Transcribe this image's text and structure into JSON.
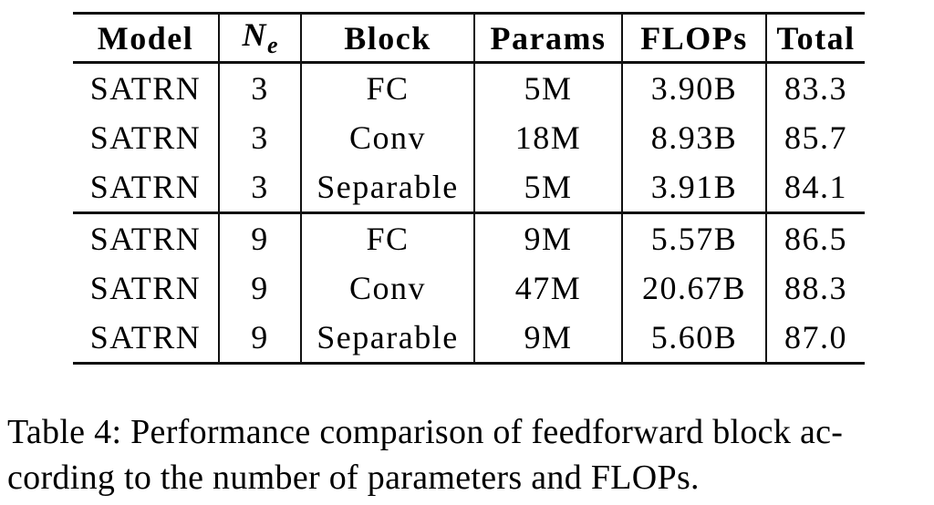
{
  "colors": {
    "text": "#000000",
    "rule": "#111111",
    "background": "#ffffff"
  },
  "table": {
    "headers": {
      "model": "Model",
      "ne": {
        "base": "N",
        "sub": "e"
      },
      "block": "Block",
      "params": "Params",
      "flops": "FLOPs",
      "total": "Total"
    },
    "rows": [
      [
        "SATRN",
        "3",
        "FC",
        "5M",
        "3.90B",
        "83.3"
      ],
      [
        "SATRN",
        "3",
        "Conv",
        "18M",
        "8.93B",
        "85.7"
      ],
      [
        "SATRN",
        "3",
        "Separable",
        "5M",
        "3.91B",
        "84.1"
      ],
      [
        "SATRN",
        "9",
        "FC",
        "9M",
        "5.57B",
        "86.5"
      ],
      [
        "SATRN",
        "9",
        "Conv",
        "47M",
        "20.67B",
        "88.3"
      ],
      [
        "SATRN",
        "9",
        "Separable",
        "9M",
        "5.60B",
        "87.0"
      ]
    ]
  },
  "caption": {
    "line1": "Table 4: Performance comparison of feedforward block ac-",
    "line2": "cording to the number of parameters and FLOPs."
  }
}
